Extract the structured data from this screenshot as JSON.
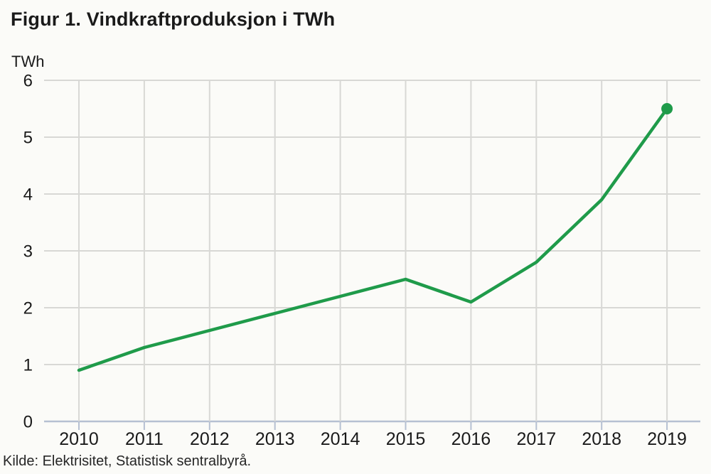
{
  "title": "Figur 1. Vindkraftproduksjon i TWh",
  "source": "Kilde: Elektrisitet, Statistisk sentralbyrå.",
  "chart_data": {
    "type": "line",
    "title": "Figur 1. Vindkraftproduksjon i TWh",
    "unit_label": "TWh",
    "xlabel": "",
    "ylabel": "TWh",
    "x": [
      2010,
      2011,
      2012,
      2013,
      2014,
      2015,
      2016,
      2017,
      2018,
      2019
    ],
    "series": [
      {
        "name": "Vindkraftproduksjon",
        "values": [
          0.9,
          1.3,
          1.6,
          1.9,
          2.2,
          2.5,
          2.1,
          2.8,
          3.9,
          5.5
        ]
      }
    ],
    "ylim": [
      0,
      6
    ],
    "yticks": [
      0,
      1,
      2,
      3,
      4,
      5,
      6
    ],
    "grid": true,
    "legend": "none",
    "end_marker_on_last_point": true
  },
  "colors": {
    "line": "#1f9b4a",
    "grid": "#d8d8d5",
    "axis": "#b6c0d2",
    "background": "#fbfbf8",
    "text": "#1a1a1a"
  }
}
